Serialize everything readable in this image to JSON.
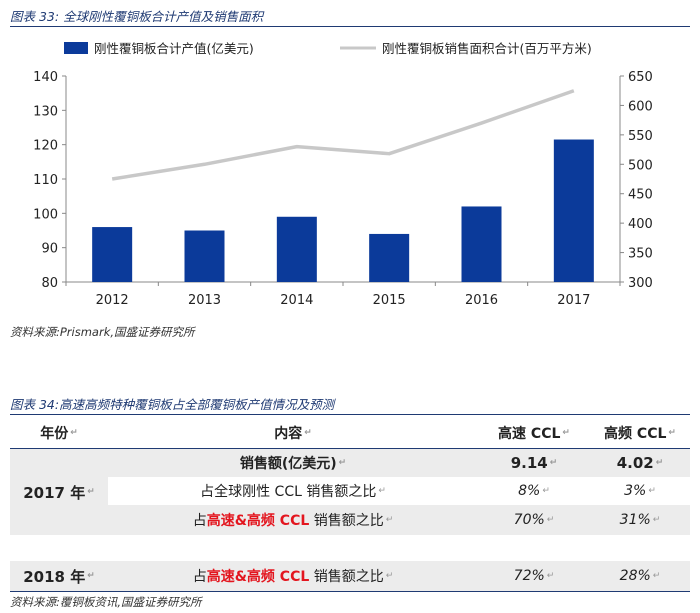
{
  "figure1": {
    "title": "图表 33: 全球刚性覆铜板合计产值及销售面积",
    "source": "资料来源:Prismark,国盛证券研究所"
  },
  "chart_data": {
    "type": "bar",
    "title": "",
    "categories": [
      "2012",
      "2013",
      "2014",
      "2015",
      "2016",
      "2017"
    ],
    "series": [
      {
        "name": "刚性覆铜板合计产值(亿美元)",
        "type": "bar",
        "axis": "left",
        "color": "#0b3a9a",
        "values": [
          96,
          95,
          99,
          94,
          102,
          121.5
        ]
      },
      {
        "name": "刚性覆铜板销售面积合计(百万平方米)",
        "type": "line",
        "axis": "right",
        "color": "#c8c8c8",
        "values": [
          475,
          500,
          530,
          518,
          570,
          625
        ]
      }
    ],
    "ylim_left": [
      80,
      140
    ],
    "yticks_left": [
      80,
      90,
      100,
      110,
      120,
      130,
      140
    ],
    "ylim_right": [
      300,
      650
    ],
    "yticks_right": [
      300,
      350,
      400,
      450,
      500,
      550,
      600,
      650
    ],
    "xlabel": "",
    "ylabel": "",
    "grid": false,
    "legend": "top"
  },
  "figure2": {
    "title": "图表 34:高速高频特种覆铜板占全部覆铜板产值情况及预测",
    "source": "资料来源:覆铜板资讯,国盛证券研究所",
    "headers": {
      "year": "年份",
      "content": "内容",
      "high_speed": "高速 CCL",
      "high_freq": "高频 CCL"
    },
    "rows": [
      {
        "year": "2017 年",
        "label": "销售额(亿美元)",
        "high_speed": "9.14",
        "high_freq": "4.02"
      },
      {
        "label": "占全球刚性 CCL 销售额之比",
        "high_speed": "8%",
        "high_freq": "3%"
      },
      {
        "label_prefix": "占",
        "label_red": "高速&高频 CCL",
        "label_suffix": "销售额之比",
        "high_speed": "70%",
        "high_freq": "31%"
      },
      {
        "year": "2018 年",
        "label_prefix": "占",
        "label_red": "高速&高频 CCL",
        "label_suffix": "销售额之比",
        "high_speed": "72%",
        "high_freq": "28%"
      }
    ]
  }
}
